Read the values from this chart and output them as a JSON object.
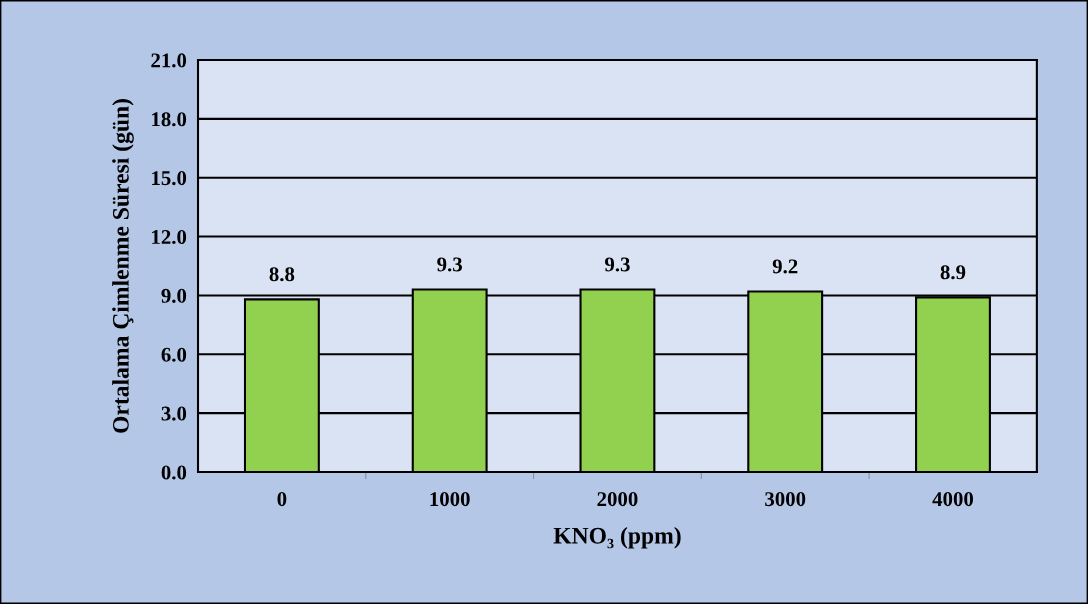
{
  "chart_data": {
    "type": "bar",
    "xlabel": "KNO₃ (ppm)",
    "ylabel": "Ortalama Çimlenme Süresi (gün)",
    "categories": [
      "0",
      "1000",
      "2000",
      "3000",
      "4000"
    ],
    "values": [
      8.8,
      9.3,
      9.3,
      9.2,
      8.9
    ],
    "color": "#92d050",
    "ylim": [
      0,
      21
    ],
    "yticks": [
      {
        "value": 0,
        "label": "0.0"
      },
      {
        "value": 3,
        "label": "3.0"
      },
      {
        "value": 6,
        "label": "6.0"
      },
      {
        "value": 9,
        "label": "9.0"
      },
      {
        "value": 12,
        "label": "12.0"
      },
      {
        "value": 15,
        "label": "15.0"
      },
      {
        "value": 18,
        "label": "18.0"
      },
      {
        "value": 21,
        "label": "21.0"
      }
    ],
    "grid": "y",
    "data_labels": true
  }
}
